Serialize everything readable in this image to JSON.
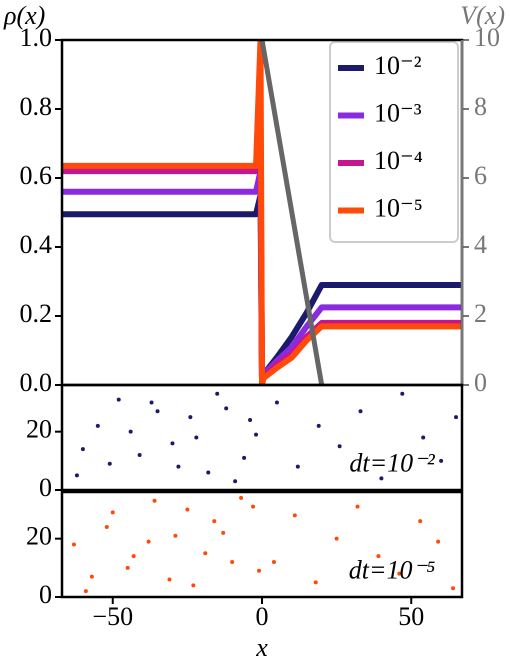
{
  "chart_data": [
    {
      "type": "line",
      "ylabel": "ρ(x)",
      "y2label": "V(x)",
      "xlim": [
        -67,
        67
      ],
      "ylim": [
        0,
        1
      ],
      "y2lim": [
        0,
        10
      ],
      "yticks": [
        {
          "value": 0,
          "label": "0.0"
        },
        {
          "value": 0.2,
          "label": "0.2"
        },
        {
          "value": 0.4,
          "label": "0.4"
        },
        {
          "value": 0.6,
          "label": "0.6"
        },
        {
          "value": 0.8,
          "label": "0.8"
        },
        {
          "value": 1,
          "label": "1.0"
        }
      ],
      "y2ticks": [
        0,
        2,
        4,
        6,
        8,
        10
      ],
      "legend": "upper right",
      "x": [
        -67,
        -2,
        -0.5,
        0,
        0.5,
        5,
        10,
        15,
        20,
        67
      ],
      "series": [
        {
          "name": "10⁻²",
          "color": "#1b1a6b",
          "values": [
            0.495,
            0.495,
            0.55,
            0.02,
            0.03,
            0.08,
            0.14,
            0.21,
            0.29,
            0.29
          ]
        },
        {
          "name": "10⁻³",
          "color": "#8a2be2",
          "values": [
            0.56,
            0.56,
            0.62,
            0.02,
            0.03,
            0.07,
            0.11,
            0.17,
            0.225,
            0.225
          ]
        },
        {
          "name": "10⁻⁴",
          "color": "#c5168f",
          "values": [
            0.62,
            0.62,
            0.7,
            0.01,
            0.02,
            0.06,
            0.09,
            0.14,
            0.18,
            0.18
          ]
        },
        {
          "name": "10⁻⁵",
          "color": "#ff4a0a",
          "values": [
            0.635,
            0.635,
            1.0,
            0.0,
            0.02,
            0.05,
            0.08,
            0.13,
            0.17,
            0.17
          ]
        },
        {
          "color": "#666666",
          "axis": "y2",
          "x": [
            0,
            20
          ],
          "values": [
            10,
            0
          ]
        }
      ]
    },
    {
      "type": "scatter",
      "annotation": "dt=10⁻²",
      "color": "#1b1a6b",
      "xlim": [
        -67,
        67
      ],
      "ylim": [
        0,
        36
      ],
      "yticks": [
        0,
        20
      ],
      "x": [
        -62,
        -55,
        -48,
        -41,
        -35,
        -28,
        -22,
        -15,
        -9,
        -4,
        -60,
        -51,
        -44,
        -37,
        -30,
        -24,
        -18,
        -12,
        -6,
        -2,
        5,
        12,
        19,
        26,
        33,
        40,
        47,
        54,
        60,
        65
      ],
      "values": [
        5,
        22,
        31,
        12,
        27,
        8,
        18,
        33,
        3,
        24,
        14,
        9,
        20,
        30,
        16,
        25,
        6,
        28,
        11,
        19,
        30,
        8,
        22,
        15,
        27,
        4,
        33,
        18,
        10,
        25
      ]
    },
    {
      "type": "scatter",
      "annotation": "dt=10⁻⁵",
      "color": "#ff4a0a",
      "xlabel": "x",
      "xlim": [
        -67,
        67
      ],
      "ylim": [
        0,
        36
      ],
      "yticks": [
        0,
        20
      ],
      "xticks": [
        {
          "value": -50,
          "label": "−50"
        },
        0,
        50
      ],
      "x": [
        -63,
        -57,
        -50,
        -43,
        -36,
        -29,
        -23,
        -16,
        -10,
        -3,
        -59,
        -52,
        -45,
        -38,
        -31,
        -25,
        -19,
        -13,
        -7,
        -1,
        4,
        11,
        18,
        25,
        32,
        39,
        46,
        53,
        59,
        64
      ],
      "values": [
        18,
        7,
        29,
        14,
        33,
        21,
        4,
        26,
        12,
        31,
        2,
        24,
        10,
        19,
        6,
        30,
        15,
        22,
        34,
        9,
        12,
        28,
        5,
        20,
        31,
        14,
        8,
        26,
        19,
        3
      ]
    }
  ]
}
